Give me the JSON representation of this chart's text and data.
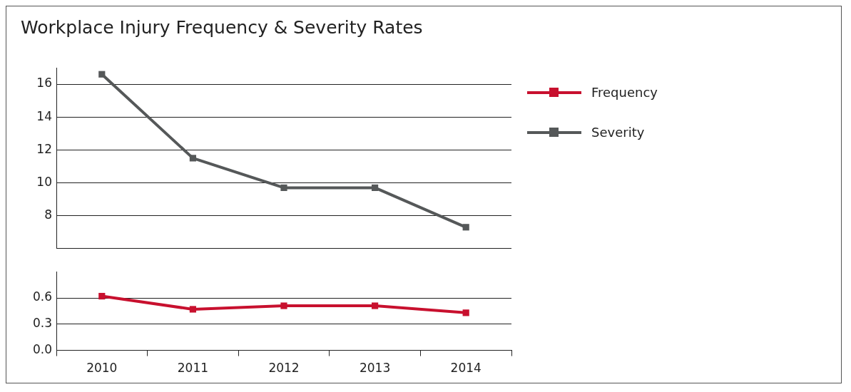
{
  "chart_data": [
    {
      "type": "line",
      "title": "Workplace Injury Frequency & Severity Rates",
      "categories": [
        "2010",
        "2011",
        "2012",
        "2013",
        "2014"
      ],
      "series": [
        {
          "name": "Severity",
          "color": "#555859",
          "values": [
            16.6,
            11.5,
            9.7,
            9.7,
            7.3
          ]
        }
      ],
      "ylim": [
        6,
        17
      ],
      "yticks": [
        {
          "value": 6,
          "label": null
        },
        8,
        10,
        12,
        14,
        16
      ],
      "tick_labels": "y",
      "grid": "y",
      "legend": "top right",
      "marker": "square",
      "line_style": "solid"
    },
    {
      "type": "line",
      "categories": [
        "2010",
        "2011",
        "2012",
        "2013",
        "2014"
      ],
      "series": [
        {
          "name": "Frequency",
          "color": "#c8102e",
          "values": [
            0.62,
            0.47,
            0.51,
            0.51,
            0.43
          ]
        }
      ],
      "ylim": [
        0,
        0.9
      ],
      "yticks": [
        {
          "value": 0,
          "label": "0.0"
        },
        0.3,
        0.6
      ],
      "grid": "y",
      "legend": "top right",
      "marker": "square",
      "line_style": "solid"
    }
  ]
}
